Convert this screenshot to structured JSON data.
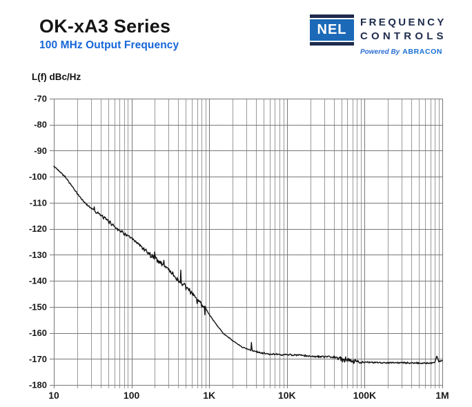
{
  "header": {
    "title": "OK-xA3 Series",
    "subtitle": "100 MHz Output Frequency"
  },
  "logo": {
    "mark": "NEL",
    "line1": "FREQUENCY",
    "line2": "CONTROLS",
    "powered_prefix": "Powered By",
    "powered_brand": "ABRACON",
    "colors": {
      "box_blue": "#1c69b8",
      "navy": "#1e2b4d",
      "powered_blue": "#2e6fd6",
      "abracon_blue": "#186fd4"
    }
  },
  "colors": {
    "accent_blue": "#1565d8",
    "grid_minor": "#999999",
    "grid_major": "#777777",
    "trace": "#111111",
    "tick_text": "#1a1a1a",
    "background": "#ffffff"
  },
  "chart_data": {
    "type": "line",
    "title": "",
    "ylabel": "L(f) dBc/Hz",
    "xlabel": "",
    "x_scale": "log",
    "x_range_hz": [
      10,
      1000000
    ],
    "x_tick_labels": [
      "10",
      "100",
      "1K",
      "10K",
      "100K",
      "1M"
    ],
    "ylim": [
      -180,
      -70
    ],
    "y_tick_step": 10,
    "y_tick_labels": [
      "-70",
      "-80",
      "-90",
      "-100",
      "-110",
      "-120",
      "-130",
      "-140",
      "-150",
      "-160",
      "-170",
      "-180"
    ],
    "grid": "full log minor verticals, 10 dB major horizontals",
    "legend": "none",
    "series": [
      {
        "name": "phase-noise",
        "points_hz_dbc": [
          [
            10,
            -96
          ],
          [
            12,
            -98
          ],
          [
            14,
            -100
          ],
          [
            17,
            -103.5
          ],
          [
            20,
            -106.5
          ],
          [
            25,
            -110
          ],
          [
            30,
            -112
          ],
          [
            40,
            -114.8
          ],
          [
            50,
            -117
          ],
          [
            66,
            -120
          ],
          [
            85,
            -122.3
          ],
          [
            100,
            -123.8
          ],
          [
            130,
            -126.5
          ],
          [
            175,
            -130
          ],
          [
            230,
            -132.8
          ],
          [
            300,
            -135.5
          ],
          [
            400,
            -140
          ],
          [
            520,
            -143
          ],
          [
            650,
            -146
          ],
          [
            800,
            -149
          ],
          [
            900,
            -150.5
          ],
          [
            1000,
            -153
          ],
          [
            1250,
            -157
          ],
          [
            1500,
            -160
          ],
          [
            2000,
            -163
          ],
          [
            2600,
            -165.3
          ],
          [
            3500,
            -166.8
          ],
          [
            4500,
            -167.6
          ],
          [
            6000,
            -168.2
          ],
          [
            10000,
            -168.4
          ],
          [
            15000,
            -168.6
          ],
          [
            20000,
            -169
          ],
          [
            30000,
            -169.2
          ],
          [
            40000,
            -169.3
          ],
          [
            50000,
            -170
          ],
          [
            60000,
            -170.3
          ],
          [
            80000,
            -171
          ],
          [
            100000,
            -171.3
          ],
          [
            150000,
            -171.4
          ],
          [
            300000,
            -171.5
          ],
          [
            500000,
            -171.6
          ],
          [
            700000,
            -171.6
          ],
          [
            800000,
            -171.4
          ],
          [
            850000,
            -168.8
          ],
          [
            900000,
            -171
          ],
          [
            1000000,
            -170.8
          ]
        ]
      }
    ],
    "spurs_hz_db": [
      [
        33,
        2.5,
        0.006
      ],
      [
        200,
        4.5,
        0.006
      ],
      [
        260,
        3.0,
        0.005
      ],
      [
        430,
        4.5,
        0.006
      ],
      [
        560,
        3.0,
        0.005
      ],
      [
        700,
        -2.5,
        0.005
      ],
      [
        880,
        -3.0,
        0.005
      ],
      [
        3500,
        4.0,
        0.007
      ]
    ],
    "noise_regions_hz_db": [
      [
        10,
        30,
        0.4
      ],
      [
        30,
        150,
        0.8
      ],
      [
        150,
        900,
        1.2
      ],
      [
        900,
        4000,
        0.25
      ],
      [
        4000,
        45000,
        0.45
      ],
      [
        45000,
        95000,
        1.2
      ],
      [
        95000,
        1000000,
        0.35
      ]
    ]
  }
}
